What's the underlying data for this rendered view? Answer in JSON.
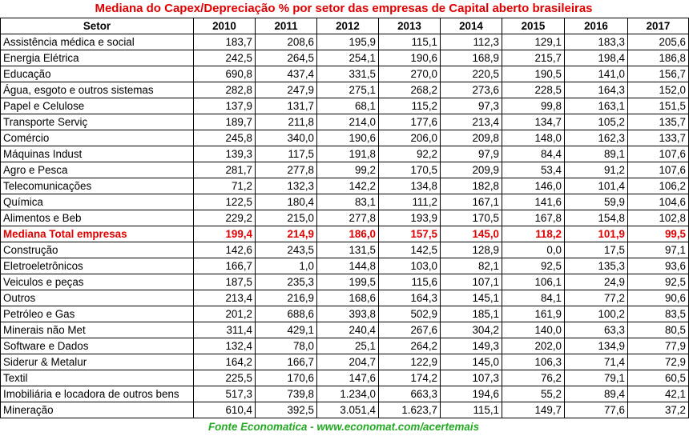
{
  "chart_data": {
    "type": "table",
    "title": "Mediana do Capex/Depreciação % por setor das empresas de Capital aberto brasileiras",
    "columns": [
      "Setor",
      "2010",
      "2011",
      "2012",
      "2013",
      "2014",
      "2015",
      "2016",
      "2017"
    ],
    "rows": [
      {
        "setor": "Assistência médica e social",
        "values": [
          "183,7",
          "208,6",
          "195,9",
          "115,1",
          "112,3",
          "129,1",
          "183,3",
          "205,6"
        ]
      },
      {
        "setor": "Energia Elétrica",
        "values": [
          "242,5",
          "264,5",
          "254,1",
          "190,6",
          "168,9",
          "215,7",
          "198,4",
          "186,8"
        ]
      },
      {
        "setor": "Educação",
        "values": [
          "690,8",
          "437,4",
          "331,5",
          "270,0",
          "220,5",
          "190,5",
          "141,0",
          "156,7"
        ]
      },
      {
        "setor": "Água, esgoto e outros sistemas",
        "values": [
          "282,8",
          "247,9",
          "275,1",
          "268,2",
          "273,6",
          "228,5",
          "164,3",
          "152,0"
        ]
      },
      {
        "setor": "Papel e Celulose",
        "values": [
          "137,9",
          "131,7",
          "68,1",
          "115,2",
          "97,3",
          "99,8",
          "163,1",
          "151,5"
        ]
      },
      {
        "setor": "Transporte Serviç",
        "values": [
          "189,7",
          "211,8",
          "214,0",
          "177,6",
          "213,4",
          "134,7",
          "105,2",
          "135,7"
        ]
      },
      {
        "setor": "Comércio",
        "values": [
          "245,8",
          "340,0",
          "190,6",
          "206,0",
          "209,8",
          "148,0",
          "162,3",
          "133,7"
        ]
      },
      {
        "setor": "Máquinas Indust",
        "values": [
          "139,3",
          "117,5",
          "191,8",
          "92,2",
          "97,9",
          "84,4",
          "89,1",
          "107,6"
        ]
      },
      {
        "setor": "Agro e Pesca",
        "values": [
          "281,7",
          "277,8",
          "99,2",
          "170,5",
          "209,9",
          "53,4",
          "91,2",
          "107,6"
        ]
      },
      {
        "setor": "Telecomunicações",
        "values": [
          "71,2",
          "132,3",
          "142,2",
          "134,8",
          "182,8",
          "146,0",
          "101,4",
          "106,2"
        ]
      },
      {
        "setor": "Química",
        "values": [
          "122,5",
          "180,4",
          "83,1",
          "111,2",
          "167,1",
          "141,6",
          "59,9",
          "104,6"
        ]
      },
      {
        "setor": "Alimentos e Beb",
        "values": [
          "229,2",
          "215,0",
          "277,8",
          "193,9",
          "170,5",
          "167,8",
          "154,8",
          "102,8"
        ]
      },
      {
        "setor": "Mediana Total empresas",
        "values": [
          "199,4",
          "214,9",
          "186,0",
          "157,5",
          "145,0",
          "118,2",
          "101,9",
          "99,5"
        ],
        "highlight": true
      },
      {
        "setor": "Construção",
        "values": [
          "142,6",
          "243,5",
          "131,5",
          "142,5",
          "128,9",
          "0,0",
          "17,5",
          "97,1"
        ]
      },
      {
        "setor": "Eletroeletrônicos",
        "values": [
          "166,7",
          "1,0",
          "144,8",
          "103,0",
          "82,1",
          "92,5",
          "135,3",
          "93,6"
        ]
      },
      {
        "setor": "Veiculos e peças",
        "values": [
          "187,5",
          "235,3",
          "199,5",
          "115,6",
          "107,1",
          "106,1",
          "24,9",
          "92,5"
        ]
      },
      {
        "setor": "Outros",
        "values": [
          "213,4",
          "216,9",
          "168,6",
          "164,3",
          "145,1",
          "84,1",
          "77,2",
          "90,6"
        ]
      },
      {
        "setor": "Petróleo e Gas",
        "values": [
          "201,2",
          "688,6",
          "393,8",
          "502,9",
          "185,1",
          "161,9",
          "100,2",
          "83,5"
        ]
      },
      {
        "setor": "Minerais não Met",
        "values": [
          "311,4",
          "429,1",
          "240,4",
          "267,6",
          "304,2",
          "140,0",
          "63,3",
          "80,5"
        ]
      },
      {
        "setor": "Software e Dados",
        "values": [
          "132,4",
          "78,0",
          "25,1",
          "264,2",
          "149,3",
          "202,0",
          "134,9",
          "77,9"
        ]
      },
      {
        "setor": "Siderur & Metalur",
        "values": [
          "164,2",
          "166,7",
          "204,7",
          "122,9",
          "145,0",
          "106,3",
          "71,4",
          "72,9"
        ]
      },
      {
        "setor": "Textil",
        "values": [
          "225,5",
          "170,6",
          "147,6",
          "174,2",
          "107,3",
          "76,2",
          "79,1",
          "60,5"
        ]
      },
      {
        "setor": "Imobiliária e locadora de outros bens",
        "values": [
          "517,3",
          "739,8",
          "1.234,0",
          "663,3",
          "194,6",
          "55,2",
          "89,4",
          "42,1"
        ]
      },
      {
        "setor": "Mineração",
        "values": [
          "610,4",
          "392,5",
          "3.051,4",
          "1.623,7",
          "115,1",
          "149,7",
          "77,6",
          "37,2"
        ]
      }
    ],
    "source": "Fonte Economatica - www.economat.com/acertemais"
  },
  "colors": {
    "title": "#e00000",
    "highlight_row": "#e00000",
    "source": "#22aa22",
    "border": "#000000"
  }
}
